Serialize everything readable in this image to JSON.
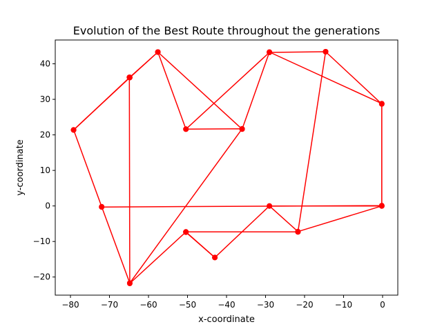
{
  "chart_data": {
    "type": "line",
    "title": "Evolution of the Best Route throughout the generations",
    "xlabel": "x-coordinate",
    "ylabel": "y-coordinate",
    "xlim": [
      -83.9,
      3.9
    ],
    "ylim": [
      -25.1,
      46.7
    ],
    "xticks": [
      -80,
      -70,
      -60,
      -50,
      -40,
      -30,
      -20,
      -10,
      0
    ],
    "xtick_labels": [
      "−80",
      "−70",
      "−60",
      "−50",
      "−40",
      "−30",
      "−20",
      "−10",
      "0"
    ],
    "yticks": [
      -20,
      -10,
      0,
      10,
      20,
      30,
      40
    ],
    "ytick_labels": [
      "−20",
      "−10",
      "0",
      "10",
      "20",
      "30",
      "40"
    ],
    "grid": false,
    "color": "#ff0000",
    "series": [
      {
        "x": [
          -79.2,
          -72.0,
          -64.8,
          -36.0,
          -50.4,
          -57.6,
          -64.8,
          -79.2
        ],
        "y": [
          21.4,
          -0.2,
          -21.7,
          21.7,
          21.6,
          43.3,
          36.1,
          21.4
        ]
      },
      {
        "x": [
          -79.2,
          -64.8,
          -57.6
        ],
        "y": [
          21.4,
          36.2,
          43.3
        ]
      },
      {
        "x": [
          -57.6,
          -36.0,
          -29.0,
          -0.2,
          -0.2,
          -21.7,
          -29.0,
          -43.0,
          -50.4,
          -64.8,
          -64.9
        ],
        "y": [
          43.3,
          21.6,
          43.3,
          28.8,
          0.0,
          -7.2,
          0.0,
          -14.5,
          -7.3,
          -21.8,
          36.2
        ]
      },
      {
        "x": [
          -50.4,
          -29.0,
          -14.6,
          -0.2,
          -0.2,
          -72.0
        ],
        "y": [
          21.6,
          43.2,
          43.4,
          28.7,
          0.1,
          -0.3
        ]
      },
      {
        "x": [
          -50.4,
          -21.7
        ],
        "y": [
          -7.3,
          -7.3
        ]
      },
      {
        "x": [
          -21.7,
          -14.6
        ],
        "y": [
          -7.3,
          43.4
        ]
      },
      {
        "x": [
          -29.0,
          -0.2
        ],
        "y": [
          0.0,
          0.0
        ]
      },
      {
        "x": [
          -43.0,
          -50.4
        ],
        "y": [
          -14.5,
          -7.4
        ]
      }
    ]
  }
}
